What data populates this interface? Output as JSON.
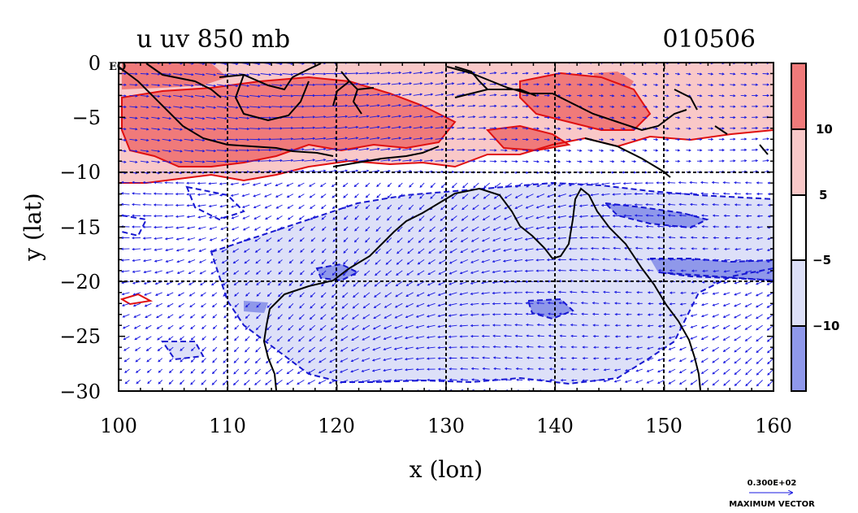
{
  "chart_data": {
    "type": "heatmap",
    "title": "u uv 850 mb",
    "date_label": "010506",
    "xlabel": "x (lon)",
    "ylabel": "y (lat)",
    "xlim": [
      100,
      160
    ],
    "ylim": [
      -30,
      0
    ],
    "x_ticks": [
      "100",
      "110",
      "120",
      "130",
      "140",
      "150",
      "160"
    ],
    "y_ticks": [
      "0",
      "−5",
      "−10",
      "−15",
      "−20",
      "−25",
      "−30"
    ],
    "eq_label": "EQ",
    "grid": true,
    "colorbar": {
      "placement": "right",
      "levels": [
        {
          "range": "above 10",
          "color": "#f07a7a"
        },
        {
          "range": "5 to 10",
          "color": "#f9c8c8"
        },
        {
          "range": "-5 to 5",
          "color": "#ffffff"
        },
        {
          "range": "-10 to -5",
          "color": "#dde0f8"
        },
        {
          "range": "below -10",
          "color": "#8f98ea"
        }
      ],
      "tick_labels": [
        "10",
        "5",
        "−5",
        "−10"
      ]
    },
    "vector_legend": {
      "value": "0.300E+02",
      "label": "MAXIMUM VECTOR"
    },
    "colors": {
      "positive_contour": "#e01010",
      "negative_contour": "#1818d0",
      "vectors": "#1a1ae0",
      "coastline": "#000000"
    }
  }
}
